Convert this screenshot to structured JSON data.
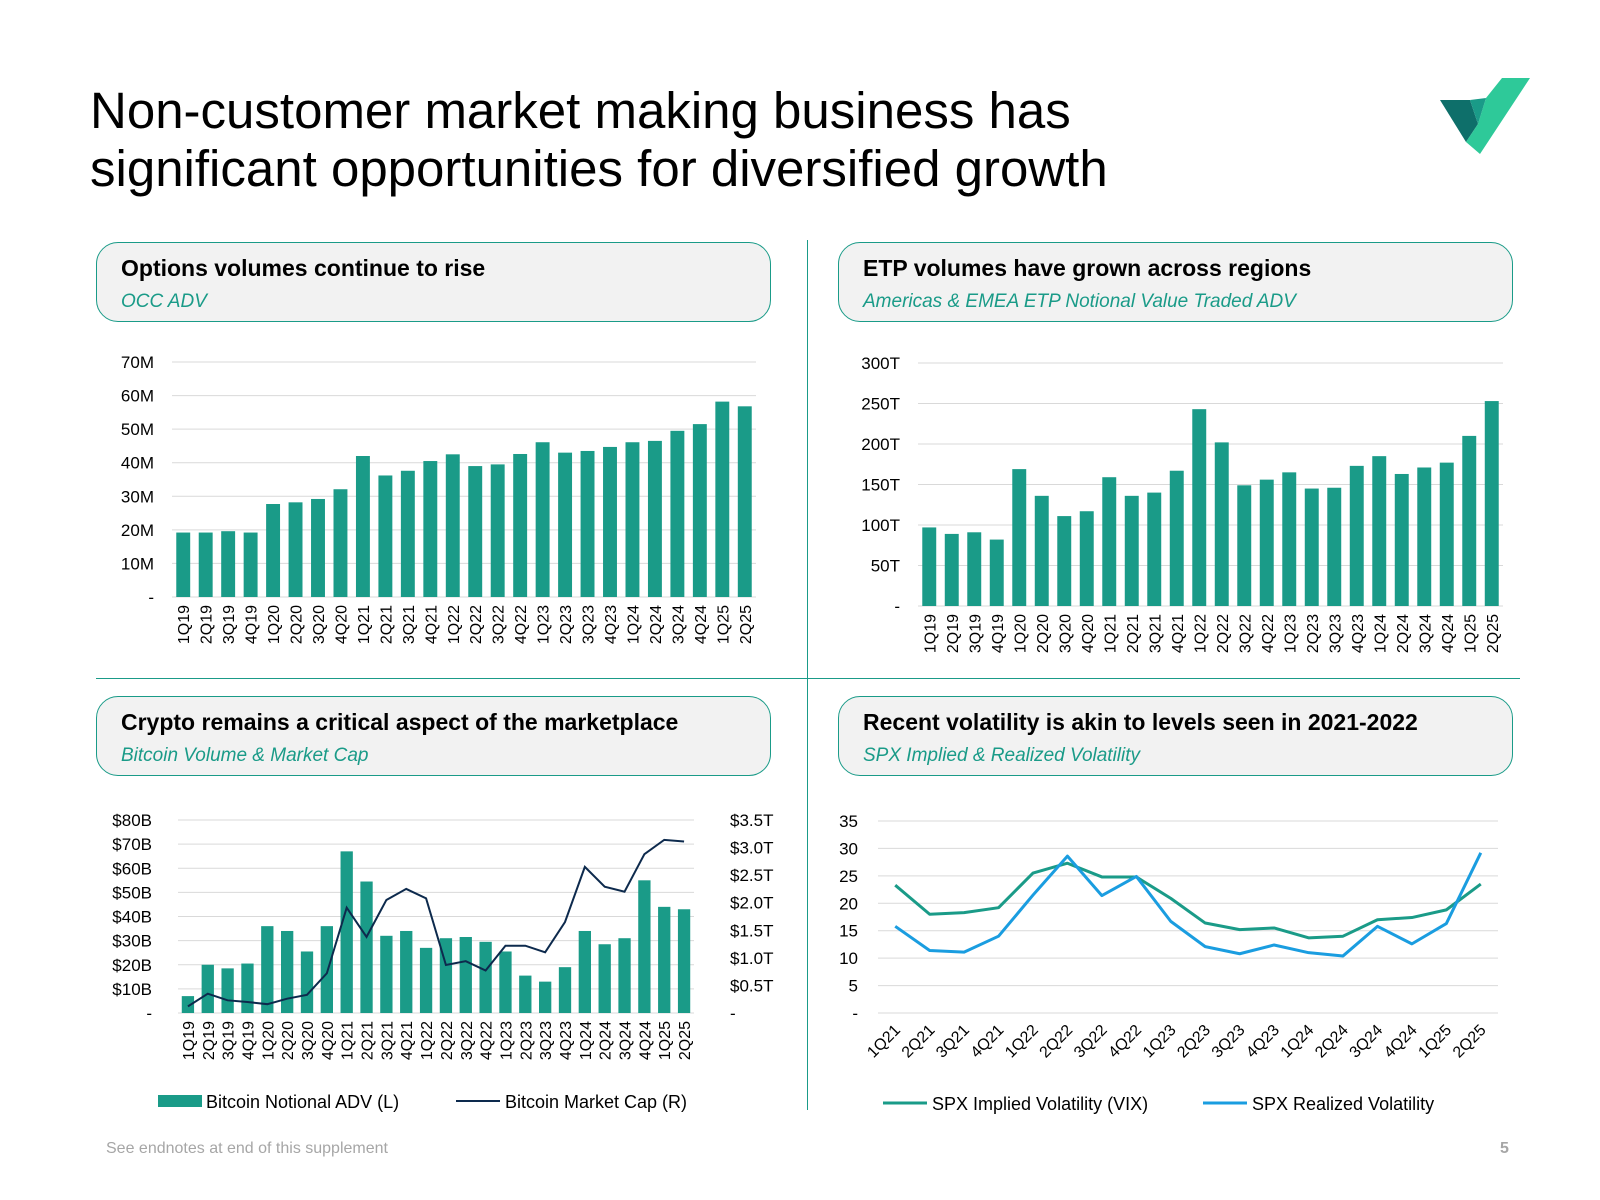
{
  "page": {
    "title_line1": "Non-customer market making business has",
    "title_line2": "significant opportunities for diversified growth",
    "footnote": "See endnotes at end of this supplement",
    "page_number": "5"
  },
  "colors": {
    "teal": "#1a9b88",
    "navy": "#0d2a4d",
    "lightblue": "#1a9de0",
    "grid": "#d9d9d9",
    "logo_dark": "#0e6f6a",
    "logo_light": "#2ec999"
  },
  "panels": {
    "options": {
      "title": "Options volumes continue to rise",
      "subtitle": "OCC ADV"
    },
    "etp": {
      "title": "ETP volumes have grown across regions",
      "subtitle": "Americas & EMEA ETP Notional Value Traded ADV"
    },
    "crypto": {
      "title": "Crypto remains a critical aspect of the marketplace",
      "subtitle": "Bitcoin Volume & Market Cap"
    },
    "vol": {
      "title": "Recent volatility is akin to levels seen in 2021-2022",
      "subtitle": "SPX Implied & Realized Volatility"
    }
  },
  "chart_data": [
    {
      "id": "options",
      "type": "bar",
      "title": "Options volumes continue to rise",
      "subtitle": "OCC ADV",
      "categories": [
        "1Q19",
        "2Q19",
        "3Q19",
        "4Q19",
        "1Q20",
        "2Q20",
        "3Q20",
        "4Q20",
        "1Q21",
        "2Q21",
        "3Q21",
        "4Q21",
        "1Q22",
        "2Q22",
        "3Q22",
        "4Q22",
        "1Q23",
        "2Q23",
        "3Q23",
        "4Q23",
        "1Q24",
        "2Q24",
        "3Q24",
        "4Q24",
        "1Q25",
        "2Q25"
      ],
      "values": [
        19.2,
        19.2,
        19.6,
        19.2,
        27.7,
        28.2,
        29.2,
        32.1,
        42.0,
        36.2,
        37.6,
        40.5,
        42.5,
        39.0,
        39.5,
        42.6,
        46.1,
        43.0,
        43.5,
        44.7,
        46.1,
        46.5,
        49.5,
        51.5,
        58.2,
        56.8
      ],
      "units": "M",
      "ylim": [
        0,
        70
      ],
      "yticks": [
        0,
        10,
        20,
        30,
        40,
        50,
        60,
        70
      ],
      "ytick_labels": [
        "-",
        "10M",
        "20M",
        "30M",
        "40M",
        "50M",
        "60M",
        "70M"
      ],
      "grid": true
    },
    {
      "id": "etp",
      "type": "bar",
      "title": "ETP volumes have grown across regions",
      "subtitle": "Americas & EMEA ETP Notional Value Traded ADV",
      "categories": [
        "1Q19",
        "2Q19",
        "3Q19",
        "4Q19",
        "1Q20",
        "2Q20",
        "3Q20",
        "4Q20",
        "1Q21",
        "2Q21",
        "3Q21",
        "4Q21",
        "1Q22",
        "2Q22",
        "3Q22",
        "4Q22",
        "1Q23",
        "2Q23",
        "3Q23",
        "4Q23",
        "1Q24",
        "2Q24",
        "3Q24",
        "4Q24",
        "1Q25",
        "2Q25"
      ],
      "values": [
        97,
        89,
        91,
        82,
        169,
        136,
        111,
        117,
        159,
        136,
        140,
        167,
        243,
        202,
        149,
        156,
        165,
        145,
        146,
        173,
        185,
        163,
        171,
        177,
        210,
        253
      ],
      "units": "T",
      "ylim": [
        0,
        300
      ],
      "yticks": [
        0,
        50,
        100,
        150,
        200,
        250,
        300
      ],
      "ytick_labels": [
        "-",
        "50T",
        "100T",
        "150T",
        "200T",
        "250T",
        "300T"
      ],
      "grid": true
    },
    {
      "id": "crypto",
      "type": "bar+line",
      "title": "Crypto remains a critical aspect of the marketplace",
      "subtitle": "Bitcoin Volume & Market Cap",
      "categories": [
        "1Q19",
        "2Q19",
        "3Q19",
        "4Q19",
        "1Q20",
        "2Q20",
        "3Q20",
        "4Q20",
        "1Q21",
        "2Q21",
        "3Q21",
        "4Q21",
        "1Q22",
        "2Q22",
        "3Q22",
        "4Q22",
        "1Q23",
        "2Q23",
        "3Q23",
        "4Q23",
        "1Q24",
        "2Q24",
        "3Q24",
        "4Q24",
        "1Q25",
        "2Q25"
      ],
      "series": [
        {
          "name": "Bitcoin Notional ADV (L)",
          "axis": "left",
          "kind": "bar",
          "values": [
            7,
            20,
            18.5,
            20.5,
            36,
            34,
            25.5,
            36,
            67,
            54.5,
            32,
            34,
            27,
            31,
            31.5,
            29.5,
            25.5,
            15.5,
            13,
            19,
            34,
            28.5,
            31,
            55,
            44,
            43
          ]
        },
        {
          "name": "Bitcoin Market Cap (R)",
          "axis": "right",
          "kind": "line",
          "values": [
            0.12,
            0.35,
            0.23,
            0.2,
            0.16,
            0.26,
            0.33,
            0.72,
            1.91,
            1.38,
            2.05,
            2.25,
            2.08,
            0.87,
            0.94,
            0.77,
            1.22,
            1.22,
            1.1,
            1.65,
            2.65,
            2.29,
            2.2,
            2.88,
            3.14,
            3.11
          ]
        }
      ],
      "ylim_left": [
        0,
        80
      ],
      "yticks_left": [
        0,
        10,
        20,
        30,
        40,
        50,
        60,
        70,
        80
      ],
      "ytick_labels_left": [
        "-",
        "$10B",
        "$20B",
        "$30B",
        "$40B",
        "$50B",
        "$60B",
        "$70B",
        "$80B"
      ],
      "ylim_right": [
        0,
        3.5
      ],
      "yticks_right": [
        0,
        0.5,
        1.0,
        1.5,
        2.0,
        2.5,
        3.0,
        3.5
      ],
      "ytick_labels_right": [
        "-",
        "$0.5T",
        "$1.0T",
        "$1.5T",
        "$2.0T",
        "$2.5T",
        "$3.0T",
        "$3.5T"
      ],
      "legend": "bottom",
      "grid": true
    },
    {
      "id": "vol",
      "type": "line",
      "title": "Recent volatility is akin to levels seen in 2021-2022",
      "subtitle": "SPX Implied & Realized Volatility",
      "categories": [
        "1Q21",
        "2Q21",
        "3Q21",
        "4Q21",
        "1Q22",
        "2Q22",
        "3Q22",
        "4Q22",
        "1Q23",
        "2Q23",
        "3Q23",
        "4Q23",
        "1Q24",
        "2Q24",
        "3Q24",
        "4Q24",
        "1Q25",
        "2Q25"
      ],
      "series": [
        {
          "name": "SPX Implied Volatility (VIX)",
          "color": "#1a9b88",
          "values": [
            23.3,
            18.0,
            18.3,
            19.2,
            25.5,
            27.3,
            24.8,
            24.8,
            20.9,
            16.4,
            15.2,
            15.5,
            13.7,
            14.0,
            17.0,
            17.4,
            18.8,
            23.5
          ]
        },
        {
          "name": "SPX Realized Volatility",
          "color": "#1a9de0",
          "values": [
            15.8,
            11.4,
            11.1,
            14.0,
            21.5,
            28.6,
            21.4,
            24.9,
            16.7,
            12.1,
            10.8,
            12.4,
            11.0,
            10.4,
            15.8,
            12.6,
            16.3,
            29.2
          ]
        }
      ],
      "ylim": [
        0,
        35
      ],
      "yticks": [
        0,
        5,
        10,
        15,
        20,
        25,
        30,
        35
      ],
      "ytick_labels": [
        "-",
        "5",
        "10",
        "15",
        "20",
        "25",
        "30",
        "35"
      ],
      "legend": "bottom",
      "grid": true
    }
  ]
}
